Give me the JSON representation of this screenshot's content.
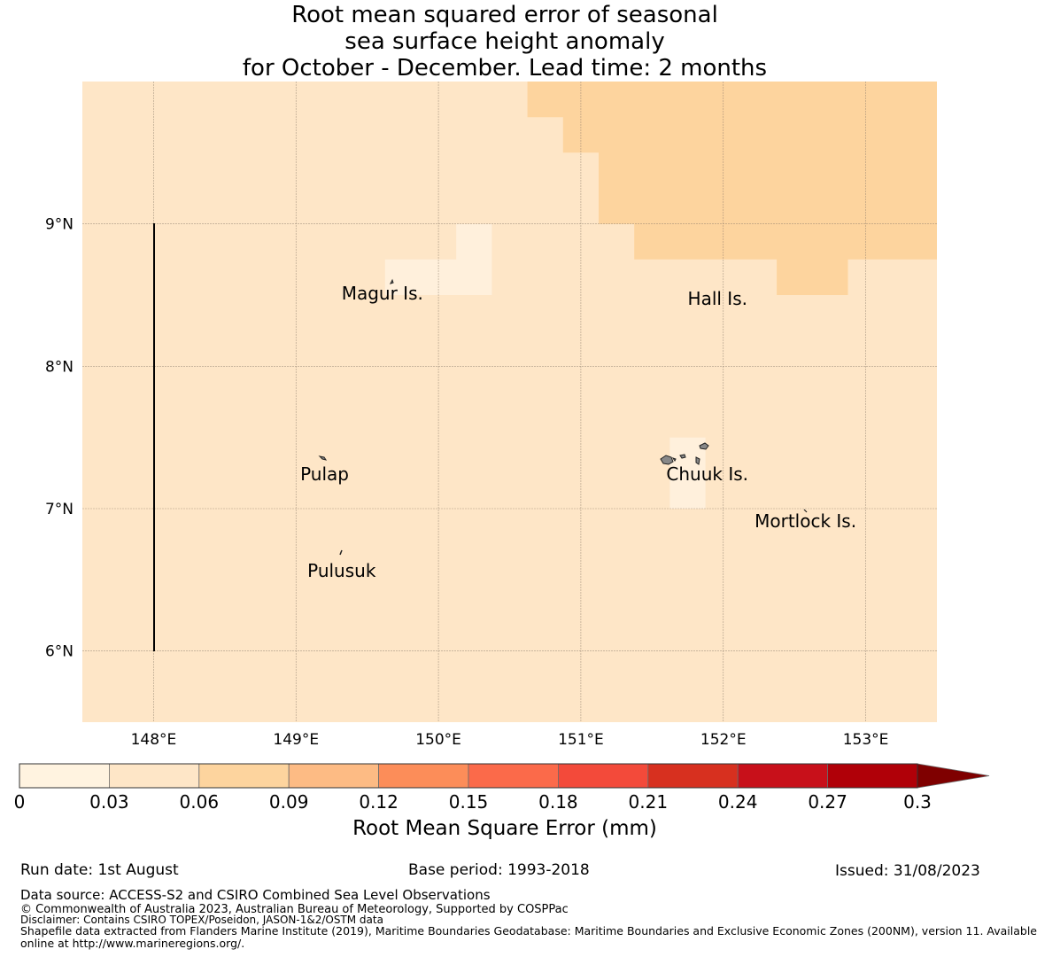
{
  "title": {
    "line1": "Root mean squared error of seasonal",
    "line2": "sea surface height anomaly",
    "line3": "for October - December. Lead time: 2 months"
  },
  "map": {
    "lon_ticks": [
      "148°E",
      "149°E",
      "150°E",
      "151°E",
      "152°E",
      "153°E"
    ],
    "lat_ticks": [
      "9°N",
      "8°N",
      "7°N",
      "6°N"
    ],
    "places": [
      {
        "name": "Magur Is.",
        "lon": 149.32,
        "lat": 8.52
      },
      {
        "name": "Hall Is.",
        "lon": 151.75,
        "lat": 8.48
      },
      {
        "name": "Pulap",
        "lon": 149.03,
        "lat": 7.25
      },
      {
        "name": "Chuuk Is.",
        "lon": 151.6,
        "lat": 7.25
      },
      {
        "name": "Mortlock Is.",
        "lon": 152.22,
        "lat": 6.92
      },
      {
        "name": "Pulusuk",
        "lon": 149.08,
        "lat": 6.57
      }
    ],
    "colors": {
      "low": "#fff0dc",
      "mid": "#fee6c7",
      "high": "#fdd49e"
    }
  },
  "colorbar": {
    "ticks": [
      "0",
      "0.03",
      "0.06",
      "0.09",
      "0.12",
      "0.15",
      "0.18",
      "0.21",
      "0.24",
      "0.27",
      "0.3"
    ],
    "colors": [
      "#fff3e0",
      "#fee6c7",
      "#fdd49e",
      "#fdbb84",
      "#fc8d59",
      "#fb6a4a",
      "#f34a3a",
      "#d7301f",
      "#c8101a",
      "#b00008",
      "#7f0000"
    ],
    "label": "Root Mean Square Error (mm)"
  },
  "footer": {
    "run_date": "Run date: 1st August",
    "base_period": "Base period: 1993-2018",
    "issued": "Issued: 31/08/2023",
    "data_source": "Data source: ACCESS-S2 and CSIRO Combined Sea Level Observations",
    "copyright": "© Commonwealth of Australia 2023, Australian Bureau of Meteorology, Supported by COSPPac",
    "disclaimer": "Disclaimer: Contains CSIRO TOPEX/Poseidon, JASON-1&2/OSTM data",
    "shapefile1": "Shapefile data extracted from Flanders Marine Institute (2019), Maritime Boundaries Geodatabase: Maritime Boundaries and Exclusive Economic Zones (200NM), version 11. Available",
    "shapefile2": "online at http://www.marineregions.org/."
  }
}
